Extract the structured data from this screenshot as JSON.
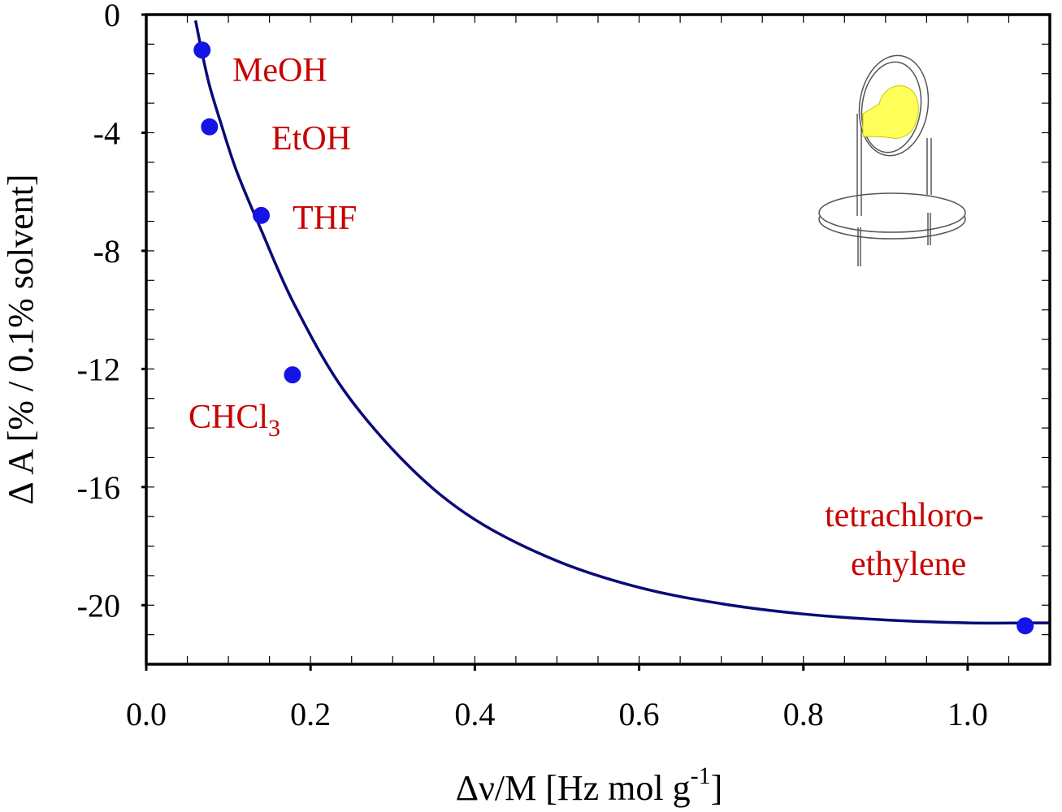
{
  "chart_data": {
    "type": "scatter",
    "title": "",
    "xlabel": "Δν/M [Hz mol g",
    "xlabel_sup": "-1",
    "xlabel_end": "]",
    "ylabel": "Δ A  [% / 0.1% solvent]",
    "xlim": [
      0.0,
      1.1
    ],
    "ylim": [
      -22,
      0
    ],
    "xticks": [
      0.0,
      0.2,
      0.4,
      0.6,
      0.8,
      1.0
    ],
    "xtick_labels": [
      "0.0",
      "0.2",
      "0.4",
      "0.6",
      "0.8",
      "1.0"
    ],
    "yticks": [
      0,
      -4,
      -8,
      -12,
      -16,
      -20
    ],
    "ytick_labels": [
      "0",
      "-4",
      "-8",
      "-12",
      "-16",
      "-20"
    ],
    "grid": false,
    "series": [
      {
        "name": "solvents",
        "points": [
          {
            "label": "MeOH",
            "x": 0.068,
            "y": -1.2
          },
          {
            "label": "EtOH",
            "x": 0.077,
            "y": -3.8
          },
          {
            "label": "THF",
            "x": 0.14,
            "y": -6.8
          },
          {
            "label": "CHCl3",
            "x": 0.178,
            "y": -12.2
          },
          {
            "label": "tetrachloroethylene",
            "x": 1.07,
            "y": -20.7
          }
        ]
      },
      {
        "name": "fit curve",
        "type": "line",
        "x": [
          0.06,
          0.068,
          0.077,
          0.09,
          0.11,
          0.14,
          0.18,
          0.24,
          0.32,
          0.4,
          0.5,
          0.6,
          0.7,
          0.8,
          0.9,
          1.0,
          1.07,
          1.1
        ],
        "y": [
          -0.2,
          -1.3,
          -2.4,
          -3.6,
          -5.3,
          -7.3,
          -9.8,
          -12.7,
          -15.3,
          -17.1,
          -18.5,
          -19.4,
          -19.95,
          -20.3,
          -20.5,
          -20.6,
          -20.6,
          -20.6
        ]
      }
    ],
    "annotations": {
      "meoh": "MeOH",
      "etoh": "EtOH",
      "thf": "THF",
      "chcl": "CHCl",
      "chcl_sub": "3",
      "tetra_line1": "tetrachloro-",
      "tetra_line2": "ethylene"
    },
    "colors": {
      "points": "#1414e6",
      "curve": "#0a0a78",
      "annotation": "#c80000",
      "axis": "#000000",
      "inset_spot": "#ffff5a"
    }
  }
}
